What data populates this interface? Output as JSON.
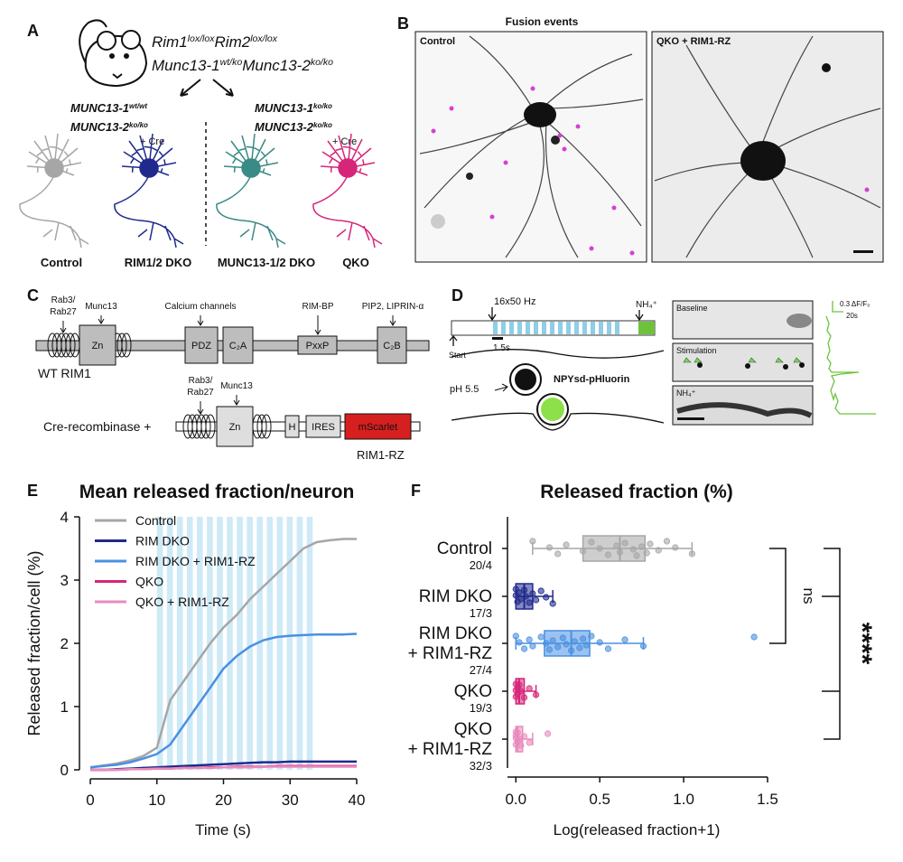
{
  "panel_a": {
    "letter": "A",
    "parent_line1": [
      {
        "base": "Rim1",
        "sup": "lox/lox"
      },
      {
        "base": "Rim2",
        "sup": "lox/lox"
      }
    ],
    "parent_line2": [
      {
        "base": "Munc13-1",
        "sup": "wt/ko"
      },
      {
        "base": "Munc13-2",
        "sup": "ko/ko"
      }
    ],
    "left_genotype": [
      {
        "base": "MUNC13-1",
        "sup": "wt/wt"
      },
      {
        "base": "MUNC13-2",
        "sup": "ko/ko"
      }
    ],
    "right_genotype": [
      {
        "base": "MUNC13-1",
        "sup": "ko/ko"
      },
      {
        "base": "MUNC13-2",
        "sup": "ko/ko"
      }
    ],
    "cre_labels": [
      "+ Cre",
      "+ Cre"
    ],
    "neurons": [
      {
        "label": "Control",
        "color": "#a6a6a6"
      },
      {
        "label": "RIM1/2 DKO",
        "color": "#1f2a8c"
      },
      {
        "label": "MUNC13-1/2 DKO",
        "color": "#3a8a85"
      },
      {
        "label": "QKO",
        "color": "#d6267a"
      }
    ]
  },
  "panel_b": {
    "letter": "B",
    "title": "Fusion events",
    "images": [
      "Control",
      "QKO + RIM1-RZ"
    ]
  },
  "panel_c": {
    "letter": "C",
    "wt_annotations": [
      [
        "Rab3/",
        "Rab27"
      ],
      [
        "Munc13"
      ],
      [
        "Calcium channels"
      ],
      [
        "RIM-BP"
      ],
      [
        "PIP2, LIPRIN-α"
      ]
    ],
    "wt_domains": [
      "Zn",
      "PDZ",
      "C₂A",
      "PxxP",
      "C₂B"
    ],
    "wt_name": "WT RIM1",
    "construct_prefix": "Cre-recombinase +",
    "construct_annotations": [
      [
        "Rab3/",
        "Rab27"
      ],
      [
        "Munc13"
      ]
    ],
    "construct_domains": [
      "Zn",
      "H",
      "IRES",
      "mScarlet"
    ],
    "construct_name": "RIM1-RZ"
  },
  "panel_d": {
    "letter": "D",
    "stim_label": "16x50 Hz",
    "nh4_label": "NH₄⁺",
    "interval_label": "1.5s",
    "start_label": "Start",
    "ph_label": "pH 5.5",
    "probe_label": "NPYsd-pHluorin",
    "images": [
      "Baseline",
      "Stimulation",
      "NH₄⁺"
    ],
    "scale_y": "0.3 ΔF/F₀",
    "scale_x": "20s"
  },
  "panel_e": {
    "letter": "E"
  },
  "panel_f": {
    "letter": "F"
  },
  "chart_data": [
    {
      "type": "line",
      "title": "Mean released fraction/neuron",
      "xlabel": "Time (s)",
      "ylabel": "Released fraction/cell (%)",
      "xlim": [
        0,
        40
      ],
      "ylim": [
        0,
        4
      ],
      "xticks": [
        0,
        10,
        20,
        30,
        40
      ],
      "yticks": [
        0,
        1,
        2,
        3,
        4
      ],
      "stimuli": [
        10,
        11.5,
        13,
        14.5,
        16,
        17.5,
        19,
        20.5,
        22,
        23.5,
        25,
        26.5,
        28,
        29.5,
        31,
        32.5
      ],
      "stim_width": 0.9,
      "stim_color": "#cfeaf7",
      "x": [
        0,
        2,
        4,
        6,
        8,
        10,
        12,
        14,
        16,
        18,
        20,
        22,
        24,
        26,
        28,
        30,
        32,
        34,
        36,
        38,
        40
      ],
      "series": [
        {
          "name": "Control",
          "color": "#a6a6a6",
          "values": [
            0.04,
            0.07,
            0.1,
            0.15,
            0.22,
            0.35,
            1.1,
            1.4,
            1.7,
            2.0,
            2.25,
            2.45,
            2.7,
            2.9,
            3.1,
            3.3,
            3.5,
            3.6,
            3.63,
            3.65,
            3.65
          ]
        },
        {
          "name": "RIM DKO",
          "color": "#1f2a8c",
          "values": [
            0,
            0,
            0.01,
            0.02,
            0.03,
            0.04,
            0.05,
            0.06,
            0.07,
            0.08,
            0.09,
            0.1,
            0.11,
            0.12,
            0.12,
            0.13,
            0.13,
            0.13,
            0.13,
            0.13,
            0.13
          ]
        },
        {
          "name": "RIM DKO + RIM1-RZ",
          "color": "#4a90e2",
          "values": [
            0.04,
            0.06,
            0.08,
            0.12,
            0.18,
            0.25,
            0.4,
            0.7,
            1.0,
            1.3,
            1.6,
            1.8,
            1.95,
            2.05,
            2.1,
            2.12,
            2.13,
            2.14,
            2.14,
            2.14,
            2.15
          ]
        },
        {
          "name": "QKO",
          "color": "#d6267a",
          "values": [
            0,
            0,
            0,
            0.01,
            0.01,
            0.02,
            0.02,
            0.03,
            0.03,
            0.04,
            0.04,
            0.05,
            0.05,
            0.05,
            0.06,
            0.06,
            0.06,
            0.06,
            0.06,
            0.06,
            0.06
          ]
        },
        {
          "name": "QKO + RIM1-RZ",
          "color": "#e98bbd",
          "values": [
            0,
            0,
            0,
            0.01,
            0.01,
            0.02,
            0.02,
            0.03,
            0.03,
            0.03,
            0.04,
            0.04,
            0.04,
            0.05,
            0.05,
            0.05,
            0.05,
            0.05,
            0.05,
            0.05,
            0.05
          ]
        }
      ]
    },
    {
      "type": "box",
      "title": "Released fraction (%)",
      "xlabel": "Log(released fraction+1)",
      "xlim": [
        -0.05,
        1.5
      ],
      "xticks": [
        {
          "value": 0,
          "label": "0.0"
        },
        0.5,
        {
          "value": 1,
          "label": "1.0"
        },
        1.5
      ],
      "groups": [
        {
          "label": [
            "Control"
          ],
          "n": "20/4",
          "color": "#a6a6a6",
          "min": 0.1,
          "q1": 0.4,
          "median": 0.62,
          "q3": 0.77,
          "max": 1.05,
          "points": [
            0.1,
            0.2,
            0.25,
            0.3,
            0.4,
            0.45,
            0.5,
            0.55,
            0.6,
            0.62,
            0.65,
            0.7,
            0.72,
            0.75,
            0.78,
            0.8,
            0.85,
            0.9,
            0.95,
            1.05
          ]
        },
        {
          "label": [
            "RIM DKO"
          ],
          "n": "17/3",
          "color": "#1f2a8c",
          "min": 0,
          "q1": 0,
          "median": 0.05,
          "q3": 0.1,
          "max": 0.22,
          "points": [
            0,
            0,
            0.01,
            0.02,
            0.03,
            0.05,
            0.06,
            0.08,
            0.1,
            0.12,
            0.15,
            0.18,
            0.22
          ]
        },
        {
          "label": [
            "RIM DKO",
            "+ RIM1-RZ"
          ],
          "n": "27/4",
          "color": "#4a90e2",
          "min": 0,
          "q1": 0.17,
          "median": 0.33,
          "q3": 0.44,
          "max": 0.76,
          "points": [
            0,
            0.02,
            0.05,
            0.08,
            0.1,
            0.15,
            0.18,
            0.2,
            0.22,
            0.25,
            0.28,
            0.3,
            0.33,
            0.35,
            0.38,
            0.4,
            0.42,
            0.45,
            0.5,
            0.55,
            0.65,
            0.76,
            1.42
          ]
        },
        {
          "label": [
            "QKO"
          ],
          "n": "19/3",
          "color": "#d6267a",
          "min": 0,
          "q1": 0,
          "median": 0.02,
          "q3": 0.05,
          "max": 0.12,
          "points": [
            0,
            0,
            0,
            0.01,
            0.01,
            0.02,
            0.03,
            0.05,
            0.08,
            0.12
          ]
        },
        {
          "label": [
            "QKO",
            "+ RIM1-RZ"
          ],
          "n": "32/3",
          "color": "#e98bbd",
          "min": 0,
          "q1": 0,
          "median": 0.01,
          "q3": 0.04,
          "max": 0.1,
          "points": [
            0,
            0,
            0,
            0,
            0.01,
            0.01,
            0.02,
            0.03,
            0.05,
            0.08,
            0.19
          ]
        }
      ],
      "annotations": [
        "ns",
        "****"
      ]
    }
  ]
}
